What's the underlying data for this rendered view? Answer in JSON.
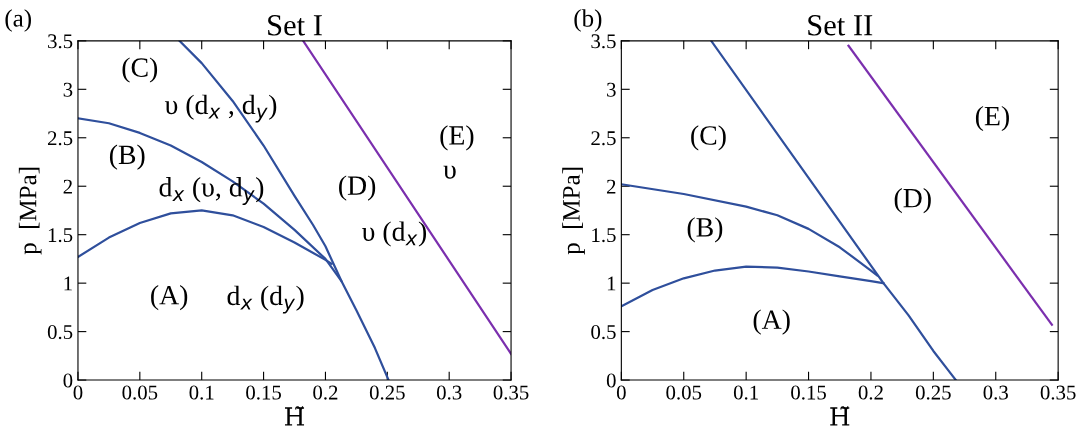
{
  "chart_data": [
    {
      "type": "line",
      "title": "Set I",
      "xlabel": "H̃",
      "ylabel": "p  [MPa]",
      "xlim": [
        0,
        0.35
      ],
      "xticks": [
        0,
        0.05,
        0.1,
        0.15,
        0.2,
        0.25,
        0.3,
        0.35
      ],
      "ylim": [
        0,
        3.5
      ],
      "yticks": [
        0,
        0.5,
        1,
        1.5,
        2,
        2.5,
        3,
        3.5
      ],
      "grid": false,
      "legend": false,
      "series": [
        {
          "color": "#2f4f9c",
          "x": [
            0,
            0.025,
            0.05,
            0.075,
            0.1,
            0.125,
            0.15,
            0.175,
            0.2,
            0.205
          ],
          "values": [
            1.27,
            1.47,
            1.62,
            1.72,
            1.75,
            1.7,
            1.58,
            1.42,
            1.24,
            1.2
          ]
        },
        {
          "color": "#2f4f9c",
          "x": [
            0,
            0.025,
            0.05,
            0.075,
            0.1,
            0.125,
            0.15,
            0.175,
            0.2,
            0.213
          ],
          "values": [
            2.7,
            2.65,
            2.55,
            2.42,
            2.25,
            2.05,
            1.82,
            1.55,
            1.25,
            1.02
          ]
        },
        {
          "color": "#2f4f9c",
          "x": [
            0.082,
            0.1,
            0.125,
            0.15,
            0.175,
            0.19,
            0.2,
            0.213,
            0.225,
            0.24,
            0.251
          ],
          "values": [
            3.5,
            3.27,
            2.88,
            2.42,
            1.9,
            1.6,
            1.38,
            1.02,
            0.72,
            0.33,
            0
          ]
        },
        {
          "color": "#7b2fae",
          "x": [
            0.182,
            0.35
          ],
          "values": [
            3.5,
            0.27
          ]
        }
      ],
      "annotations": [
        "(a)",
        "(C)",
        "υ (d$_{x}$ , d$_{y}$)",
        "(B)",
        "d$_{x}$ (υ, d$_{y}$)",
        "(A)",
        "d$_{x}$ (d$_{y}$)",
        "(D)",
        "υ (d$_{x}$)",
        "(E)",
        "υ"
      ]
    },
    {
      "type": "line",
      "title": "Set II",
      "xlabel": "H̃",
      "ylabel": "p  [MPa]",
      "xlim": [
        0,
        0.35
      ],
      "xticks": [
        0,
        0.05,
        0.1,
        0.15,
        0.2,
        0.25,
        0.3,
        0.35
      ],
      "ylim": [
        0,
        3.5
      ],
      "yticks": [
        0,
        0.5,
        1,
        1.5,
        2,
        2.5,
        3,
        3.5
      ],
      "grid": false,
      "legend": false,
      "series": [
        {
          "color": "#2f4f9c",
          "x": [
            0,
            0.025,
            0.05,
            0.075,
            0.1,
            0.125,
            0.15,
            0.175,
            0.2,
            0.21
          ],
          "values": [
            0.76,
            0.93,
            1.05,
            1.13,
            1.17,
            1.16,
            1.12,
            1.07,
            1.02,
            1.0
          ]
        },
        {
          "color": "#2f4f9c",
          "x": [
            0,
            0.05,
            0.1,
            0.125,
            0.15,
            0.175,
            0.2,
            0.205
          ],
          "values": [
            2.02,
            1.92,
            1.79,
            1.7,
            1.56,
            1.37,
            1.13,
            1.08
          ]
        },
        {
          "color": "#2f4f9c",
          "x": [
            0.072,
            0.21,
            0.23,
            0.25,
            0.262,
            0.268
          ],
          "values": [
            3.5,
            1.0,
            0.67,
            0.3,
            0.1,
            0
          ]
        },
        {
          "color": "#7b2fae",
          "x": [
            0.182,
            0.345
          ],
          "values": [
            3.45,
            0.57
          ]
        }
      ],
      "annotations": [
        "(b)",
        "(C)",
        "(B)",
        "(A)",
        "(D)",
        "(E)"
      ]
    }
  ]
}
